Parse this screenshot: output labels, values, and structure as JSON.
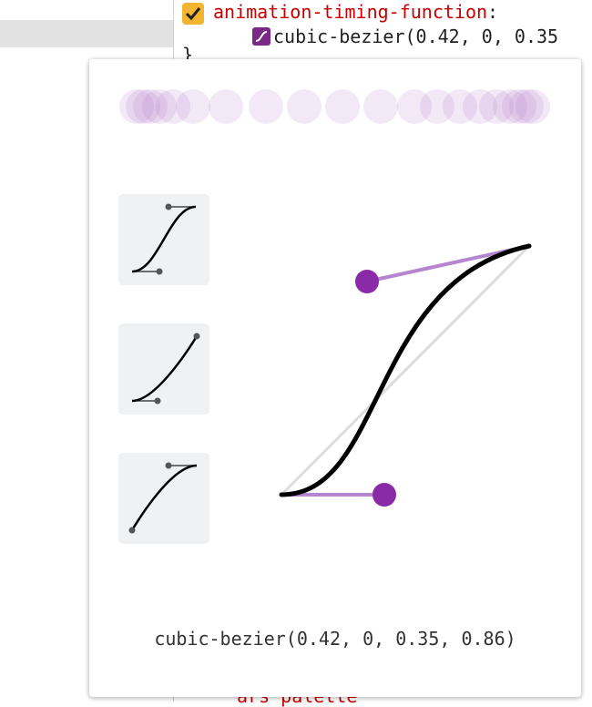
{
  "styles_pane": {
    "property": "animation-timing-function",
    "colon": ":",
    "value": "cubic-bezier(0.42, 0, 0.35",
    "closing_brace": "}",
    "bottom_text": "ars palette"
  },
  "bezier_editor": {
    "label": "cubic-bezier(0.42, 0, 0.35, 0.86)"
  }
}
